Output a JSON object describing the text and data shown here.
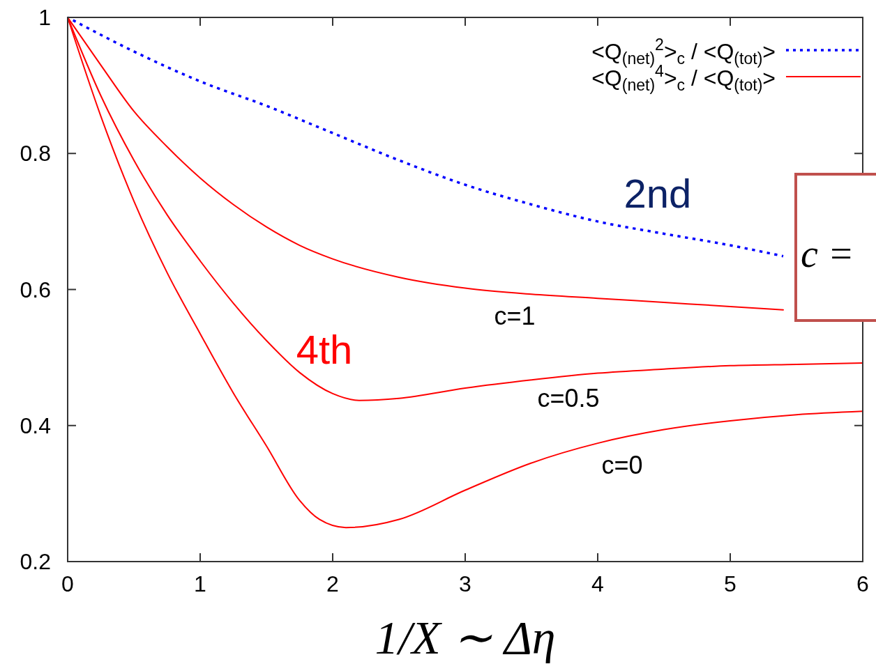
{
  "chart_data": {
    "type": "line",
    "xlabel": "1/X ∼ Δη",
    "xlim": [
      0,
      6
    ],
    "ylim": [
      0.2,
      1
    ],
    "xticks": [
      0,
      1,
      2,
      3,
      4,
      5,
      6
    ],
    "yticks": [
      0.2,
      0.4,
      0.6,
      0.8,
      1
    ],
    "grid": false,
    "legend": "top right",
    "marker": "none",
    "series": [
      {
        "name": "<Q$_{(net)}$$^{2}$>$_{c}$ / <Q$_{(tot)}$>",
        "color": "#0000ff",
        "line_style": "dotted",
        "x": [
          0,
          0.5,
          1,
          1.5,
          2,
          2.5,
          3,
          3.5,
          4,
          4.5,
          5,
          5.4
        ],
        "values": [
          1,
          0.95,
          0.906,
          0.87,
          0.83,
          0.79,
          0.754,
          0.725,
          0.7,
          0.682,
          0.665,
          0.649
        ]
      },
      {
        "name": "<Q$_{(net)}$$^{4}$>$_{c}$ / <Q$_{(tot)}$>",
        "color": "#ff0000",
        "line_style": "solid",
        "x": [
          0,
          0.25,
          0.5,
          0.75,
          1,
          1.25,
          1.5,
          1.75,
          2,
          2.5,
          3,
          3.5,
          4,
          4.5,
          5,
          5.4
        ],
        "values": [
          1,
          0.93,
          0.862,
          0.81,
          0.764,
          0.725,
          0.692,
          0.665,
          0.645,
          0.618,
          0.602,
          0.593,
          0.587,
          0.581,
          0.575,
          0.57
        ]
      },
      {
        "color": "#ff0000",
        "line_style": "solid",
        "x": [
          0,
          0.25,
          0.5,
          0.75,
          1,
          1.25,
          1.5,
          1.75,
          2,
          2.2,
          2.5,
          3,
          3.5,
          4,
          4.5,
          5,
          5.5,
          6
        ],
        "values": [
          1,
          0.885,
          0.79,
          0.71,
          0.642,
          0.58,
          0.525,
          0.478,
          0.447,
          0.437,
          0.44,
          0.455,
          0.467,
          0.477,
          0.483,
          0.488,
          0.49,
          0.492
        ]
      },
      {
        "color": "#ff0000",
        "line_style": "solid",
        "x": [
          0,
          0.25,
          0.5,
          0.75,
          1,
          1.25,
          1.5,
          1.75,
          1.9,
          2.1,
          2.5,
          3,
          3.5,
          4,
          4.5,
          5,
          5.5,
          6
        ],
        "values": [
          1,
          0.855,
          0.73,
          0.625,
          0.535,
          0.448,
          0.37,
          0.29,
          0.262,
          0.25,
          0.262,
          0.305,
          0.345,
          0.374,
          0.394,
          0.407,
          0.416,
          0.421
        ]
      }
    ],
    "annotations": [
      "2nd",
      "4th",
      "c=1",
      "c=0.5",
      "c=0",
      "c ="
    ]
  }
}
